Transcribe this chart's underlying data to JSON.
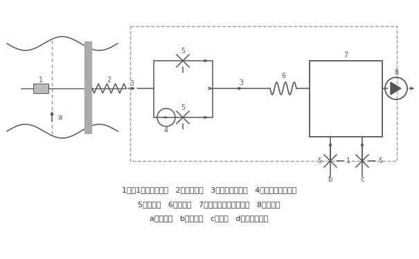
{
  "bg_color": "#ffffff",
  "line_color": "#555555",
  "gray_color": "#aaaaaa",
  "light_gray": "#bbbbbb",
  "legend_line1": "1、頇1粒物过滤装置   2、采样探针   3、样品传输管线   4、分离单元催化剂",
  "legend_line2": "5、控制阀   6、定量环   7、氢火焊离子化检测器   8、采样泵",
  "legend_line3": "a、样品气   b、燃料气   c、零气   d、采样泵排气"
}
